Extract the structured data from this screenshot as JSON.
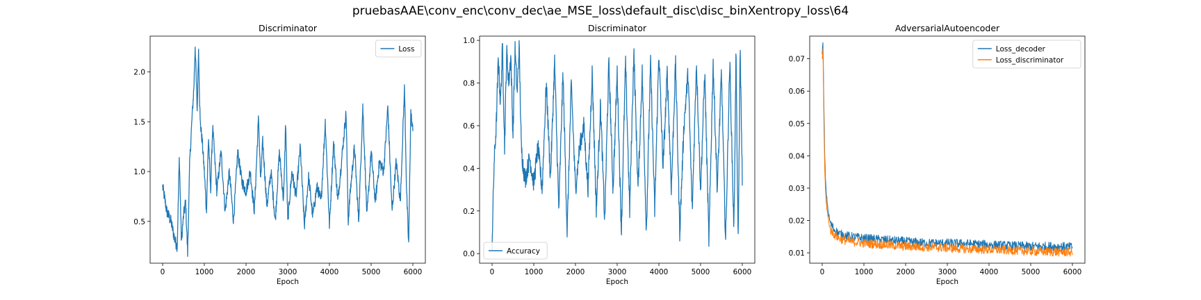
{
  "figure": {
    "suptitle": "pruebasAAE\\conv_enc\\conv_dec\\ae_MSE_loss\\default_disc\\disc_binXentropy_loss\\64"
  },
  "chart_data": [
    {
      "type": "line",
      "title": "Discriminator",
      "xlabel": "Epoch",
      "ylabel": "",
      "xlim": [
        -300,
        6300
      ],
      "ylim": [
        0.08,
        2.36
      ],
      "xticks": [
        0,
        1000,
        2000,
        3000,
        4000,
        5000,
        6000
      ],
      "yticks": [
        0.5,
        1.0,
        1.5,
        2.0
      ],
      "ytick_labels": [
        "0.5",
        "1.0",
        "1.5",
        "2.0"
      ],
      "legend": "upper right",
      "series": [
        {
          "name": "Loss",
          "color": "#1f77b4",
          "x": [
            0,
            100,
            200,
            300,
            350,
            400,
            450,
            500,
            550,
            600,
            650,
            700,
            750,
            780,
            800,
            830,
            860,
            900,
            950,
            1000,
            1050,
            1100,
            1150,
            1200,
            1300,
            1400,
            1500,
            1600,
            1700,
            1800,
            1900,
            2000,
            2100,
            2200,
            2300,
            2350,
            2400,
            2500,
            2600,
            2700,
            2800,
            2900,
            2950,
            3000,
            3100,
            3200,
            3300,
            3400,
            3500,
            3600,
            3700,
            3800,
            3900,
            4000,
            4100,
            4200,
            4300,
            4400,
            4450,
            4500,
            4600,
            4700,
            4800,
            4900,
            5000,
            5100,
            5200,
            5300,
            5400,
            5500,
            5600,
            5700,
            5800,
            5850,
            5900,
            5950,
            6000
          ],
          "y": [
            0.85,
            0.6,
            0.5,
            0.3,
            0.25,
            1.15,
            0.3,
            0.55,
            0.7,
            0.18,
            1.1,
            1.5,
            1.85,
            2.27,
            2.0,
            1.6,
            2.25,
            1.5,
            1.3,
            1.0,
            0.6,
            1.35,
            0.8,
            1.45,
            0.8,
            1.2,
            0.6,
            1.0,
            0.5,
            1.2,
            0.9,
            0.8,
            1.0,
            0.6,
            1.55,
            0.9,
            1.3,
            0.65,
            1.0,
            0.5,
            1.2,
            0.7,
            1.5,
            0.5,
            1.0,
            0.75,
            1.25,
            0.45,
            0.95,
            0.55,
            0.85,
            0.7,
            1.5,
            0.45,
            1.3,
            0.7,
            1.15,
            1.6,
            0.5,
            0.8,
            1.25,
            0.5,
            1.65,
            0.55,
            1.2,
            0.7,
            1.1,
            1.0,
            1.65,
            0.6,
            1.1,
            0.7,
            1.85,
            0.8,
            0.25,
            1.6,
            1.4
          ]
        }
      ]
    },
    {
      "type": "line",
      "title": "Discriminator",
      "xlabel": "Epoch",
      "ylabel": "",
      "xlim": [
        -300,
        6300
      ],
      "ylim": [
        -0.045,
        1.02
      ],
      "xticks": [
        0,
        1000,
        2000,
        3000,
        4000,
        5000,
        6000
      ],
      "yticks": [
        0.0,
        0.2,
        0.4,
        0.6,
        0.8,
        1.0
      ],
      "ytick_labels": [
        "0.0",
        "0.2",
        "0.4",
        "0.6",
        "0.8",
        "1.0"
      ],
      "legend": "lower left",
      "series": [
        {
          "name": "Accuracy",
          "color": "#1f77b4",
          "x": [
            0,
            50,
            100,
            150,
            200,
            250,
            300,
            350,
            400,
            450,
            500,
            550,
            600,
            650,
            700,
            750,
            800,
            900,
            1000,
            1100,
            1200,
            1300,
            1400,
            1500,
            1600,
            1700,
            1800,
            1900,
            2000,
            2100,
            2200,
            2300,
            2400,
            2500,
            2600,
            2700,
            2800,
            2900,
            3000,
            3100,
            3200,
            3300,
            3400,
            3500,
            3600,
            3700,
            3800,
            3900,
            4000,
            4100,
            4200,
            4300,
            4400,
            4500,
            4600,
            4700,
            4800,
            4900,
            5000,
            5100,
            5200,
            5300,
            5400,
            5500,
            5600,
            5700,
            5800,
            5850,
            5900,
            5950,
            6000
          ],
          "y": [
            0.05,
            0.43,
            0.6,
            0.92,
            0.7,
            0.97,
            0.5,
            0.95,
            0.8,
            0.93,
            0.55,
            0.96,
            0.75,
            0.97,
            0.5,
            0.4,
            0.35,
            0.45,
            0.33,
            0.5,
            0.3,
            0.8,
            0.35,
            0.9,
            0.2,
            0.85,
            0.1,
            0.8,
            0.3,
            0.5,
            0.6,
            0.3,
            0.85,
            0.2,
            0.7,
            0.15,
            0.9,
            0.3,
            0.85,
            0.1,
            0.9,
            0.2,
            0.95,
            0.3,
            0.85,
            0.1,
            0.9,
            0.2,
            0.95,
            0.4,
            0.85,
            0.3,
            0.9,
            0.1,
            0.6,
            0.85,
            0.2,
            0.9,
            0.3,
            0.85,
            0.05,
            0.9,
            0.3,
            0.85,
            0.05,
            0.9,
            0.1,
            0.95,
            0.02,
            0.96,
            0.35
          ]
        }
      ]
    },
    {
      "type": "line",
      "title": "AdversarialAutoencoder",
      "xlabel": "Epoch",
      "ylabel": "",
      "xlim": [
        -300,
        6300
      ],
      "ylim": [
        0.0068,
        0.077
      ],
      "xticks": [
        0,
        1000,
        2000,
        3000,
        4000,
        5000,
        6000
      ],
      "yticks": [
        0.01,
        0.02,
        0.03,
        0.04,
        0.05,
        0.06,
        0.07
      ],
      "ytick_labels": [
        "0.01",
        "0.02",
        "0.03",
        "0.04",
        "0.05",
        "0.06",
        "0.07"
      ],
      "legend": "upper right",
      "series": [
        {
          "name": "Loss_decoder",
          "color": "#1f77b4",
          "x": [
            0,
            20,
            40,
            60,
            80,
            100,
            150,
            200,
            300,
            400,
            500,
            700,
            1000,
            1500,
            2000,
            2500,
            3000,
            3500,
            4000,
            4500,
            5000,
            5500,
            6000
          ],
          "y": [
            0.072,
            0.075,
            0.055,
            0.04,
            0.032,
            0.028,
            0.022,
            0.019,
            0.017,
            0.016,
            0.0155,
            0.015,
            0.0145,
            0.014,
            0.0135,
            0.013,
            0.013,
            0.0128,
            0.0125,
            0.0122,
            0.012,
            0.012,
            0.0118
          ]
        },
        {
          "name": "Loss_discriminator",
          "color": "#ff7f0e",
          "x": [
            0,
            20,
            40,
            60,
            80,
            100,
            150,
            200,
            300,
            400,
            500,
            700,
            1000,
            1500,
            2000,
            2500,
            3000,
            3500,
            4000,
            4500,
            5000,
            5500,
            6000
          ],
          "y": [
            0.07,
            0.073,
            0.05,
            0.036,
            0.029,
            0.025,
            0.02,
            0.017,
            0.0155,
            0.0145,
            0.014,
            0.0135,
            0.013,
            0.0125,
            0.012,
            0.0118,
            0.0115,
            0.0112,
            0.011,
            0.0108,
            0.0105,
            0.0103,
            0.0102
          ]
        }
      ]
    }
  ]
}
